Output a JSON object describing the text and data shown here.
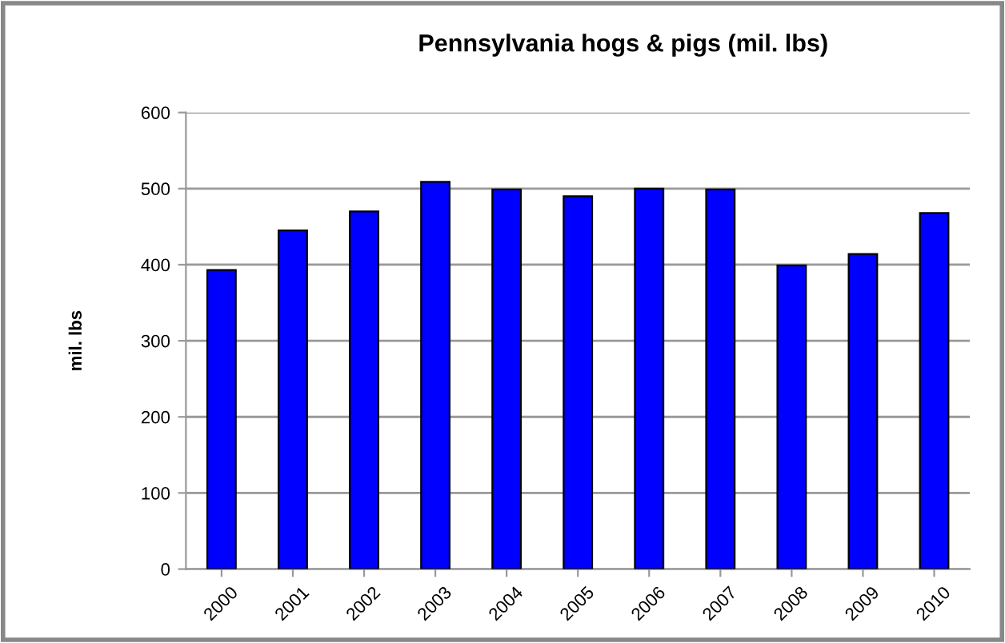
{
  "chart_data": {
    "type": "bar",
    "title": "Pennsylvania hogs & pigs (mil. lbs)",
    "ylabel": "mil. lbs",
    "categories": [
      "2000",
      "2001",
      "2002",
      "2003",
      "2004",
      "2005",
      "2006",
      "2007",
      "2008",
      "2009",
      "2010"
    ],
    "values": [
      393,
      445,
      470,
      509,
      499,
      490,
      500,
      499,
      399,
      414,
      468
    ],
    "color": "#0000ff",
    "ylim": [
      0,
      600
    ],
    "yticks": [
      0,
      100,
      200,
      300,
      400,
      500,
      600
    ],
    "grid": "y"
  }
}
